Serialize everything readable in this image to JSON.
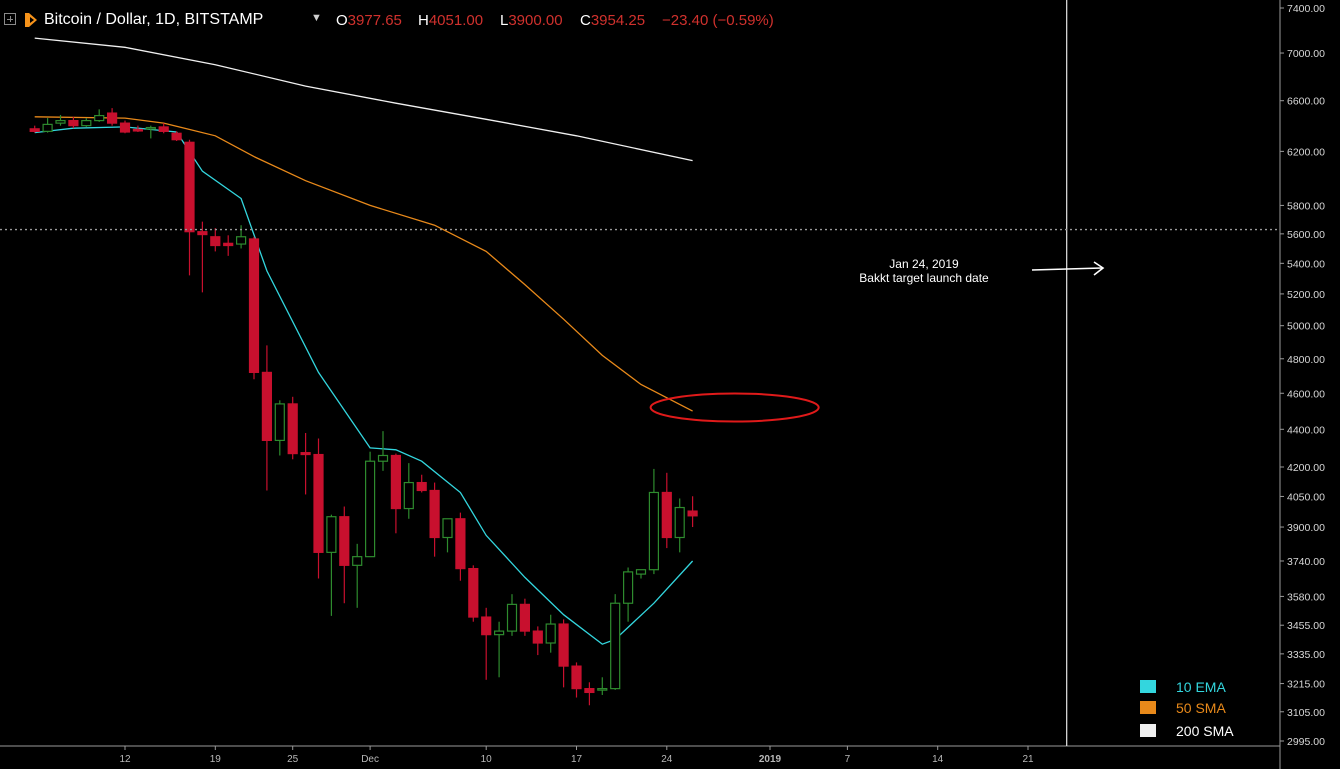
{
  "header": {
    "title": "Bitcoin / Dollar, 1D, BITSTAMP",
    "open_key": "O",
    "open": "3977.65",
    "high_key": "H",
    "high": "4051.00",
    "low_key": "L",
    "low": "3900.00",
    "close_key": "C",
    "close": "3954.25",
    "change": "−23.40 (−0.59%)"
  },
  "colors": {
    "background": "#000000",
    "up_candle": "#2e8b2e",
    "down_candle": "#c8102e",
    "ema10": "#33d6de",
    "sma50": "#e8891a",
    "sma200": "#f0f0f0",
    "ellipse": "#e01a1a",
    "grid_text": "#d8d8d8",
    "axis_text": "#b8b8b8"
  },
  "icons": {
    "expand": "plus-square-icon",
    "logo": "tradingview-logo-icon",
    "dropdown": "caret-down-icon"
  },
  "chart_data": {
    "type": "candlestick",
    "y_scale": "log",
    "ylim": [
      2940,
      7420
    ],
    "y_ticks": [
      "7400.00",
      "7000.00",
      "6600.00",
      "6200.00",
      "5800.00",
      "5600.00",
      "5400.00",
      "5200.00",
      "5000.00",
      "4800.00",
      "4600.00",
      "4400.00",
      "4200.00",
      "4050.00",
      "3900.00",
      "3740.00",
      "3580.00",
      "3455.00",
      "3335.00",
      "3215.00",
      "3105.00",
      "2995.00"
    ],
    "x_ticks": [
      {
        "label": "12",
        "date": "2018-11-12"
      },
      {
        "label": "19",
        "date": "2018-11-19"
      },
      {
        "label": "25",
        "date": "2018-11-25"
      },
      {
        "label": "Dec",
        "date": "2018-12-01"
      },
      {
        "label": "10",
        "date": "2018-12-10"
      },
      {
        "label": "17",
        "date": "2018-12-17"
      },
      {
        "label": "24",
        "date": "2018-12-24"
      },
      {
        "label": "2019",
        "date": "2019-01-01"
      },
      {
        "label": "7",
        "date": "2019-01-07"
      },
      {
        "label": "14",
        "date": "2019-01-14"
      },
      {
        "label": "21",
        "date": "2019-01-21"
      }
    ],
    "candles": [
      {
        "date": "2018-11-05",
        "o": 6375,
        "h": 6400,
        "c": 6355,
        "l": 6345
      },
      {
        "date": "2018-11-06",
        "o": 6355,
        "h": 6460,
        "c": 6410,
        "l": 6345
      },
      {
        "date": "2018-11-07",
        "o": 6420,
        "h": 6485,
        "c": 6440,
        "l": 6400
      },
      {
        "date": "2018-11-08",
        "o": 6440,
        "h": 6470,
        "c": 6400,
        "l": 6380
      },
      {
        "date": "2018-11-09",
        "o": 6400,
        "h": 6460,
        "c": 6440,
        "l": 6390
      },
      {
        "date": "2018-11-10",
        "o": 6440,
        "h": 6530,
        "c": 6480,
        "l": 6430
      },
      {
        "date": "2018-11-11",
        "o": 6500,
        "h": 6540,
        "c": 6420,
        "l": 6400
      },
      {
        "date": "2018-11-12",
        "o": 6420,
        "h": 6440,
        "c": 6350,
        "l": 6340
      },
      {
        "date": "2018-11-13",
        "o": 6370,
        "h": 6400,
        "c": 6365,
        "l": 6350
      },
      {
        "date": "2018-11-14",
        "o": 6375,
        "h": 6400,
        "c": 6385,
        "l": 6300
      },
      {
        "date": "2018-11-15",
        "o": 6390,
        "h": 6420,
        "c": 6355,
        "l": 6340
      },
      {
        "date": "2018-11-16",
        "o": 6340,
        "h": 6355,
        "c": 6290,
        "l": 6280
      },
      {
        "date": "2018-11-17",
        "o": 6270,
        "h": 6290,
        "c": 5615,
        "l": 5320
      },
      {
        "date": "2018-11-18",
        "o": 5615,
        "h": 5685,
        "c": 5595,
        "l": 5210
      },
      {
        "date": "2018-11-19",
        "o": 5580,
        "h": 5640,
        "c": 5520,
        "l": 5480
      },
      {
        "date": "2018-11-20",
        "o": 5535,
        "h": 5590,
        "c": 5520,
        "l": 5450
      },
      {
        "date": "2018-11-21",
        "o": 5530,
        "h": 5660,
        "c": 5580,
        "l": 5500
      },
      {
        "date": "2018-11-22",
        "o": 5565,
        "h": 5580,
        "c": 4720,
        "l": 4680
      },
      {
        "date": "2018-11-23",
        "o": 4720,
        "h": 4880,
        "c": 4340,
        "l": 4080
      },
      {
        "date": "2018-11-24",
        "o": 4340,
        "h": 4560,
        "c": 4540,
        "l": 4260
      },
      {
        "date": "2018-11-25",
        "o": 4540,
        "h": 4580,
        "c": 4270,
        "l": 4240
      },
      {
        "date": "2018-11-26",
        "o": 4275,
        "h": 4380,
        "c": 4265,
        "l": 4060
      },
      {
        "date": "2018-11-27",
        "o": 4265,
        "h": 4350,
        "c": 3780,
        "l": 3660
      },
      {
        "date": "2018-11-28",
        "o": 3780,
        "h": 3960,
        "c": 3950,
        "l": 3495
      },
      {
        "date": "2018-11-29",
        "o": 3950,
        "h": 4000,
        "c": 3720,
        "l": 3550
      },
      {
        "date": "2018-11-30",
        "o": 3720,
        "h": 3820,
        "c": 3760,
        "l": 3530
      },
      {
        "date": "2018-12-01",
        "o": 3760,
        "h": 4280,
        "c": 4230,
        "l": 3760
      },
      {
        "date": "2018-12-02",
        "o": 4230,
        "h": 4390,
        "c": 4260,
        "l": 4180
      },
      {
        "date": "2018-12-03",
        "o": 4260,
        "h": 4270,
        "c": 3990,
        "l": 3870
      },
      {
        "date": "2018-12-04",
        "o": 3990,
        "h": 4220,
        "c": 4120,
        "l": 3940
      },
      {
        "date": "2018-12-05",
        "o": 4120,
        "h": 4160,
        "c": 4080,
        "l": 4070
      },
      {
        "date": "2018-12-06",
        "o": 4080,
        "h": 4120,
        "c": 3850,
        "l": 3760
      },
      {
        "date": "2018-12-07",
        "o": 3850,
        "h": 3940,
        "c": 3940,
        "l": 3780
      },
      {
        "date": "2018-12-08",
        "o": 3940,
        "h": 3970,
        "c": 3705,
        "l": 3650
      },
      {
        "date": "2018-12-09",
        "o": 3705,
        "h": 3720,
        "c": 3490,
        "l": 3470
      },
      {
        "date": "2018-12-10",
        "o": 3490,
        "h": 3530,
        "c": 3415,
        "l": 3230
      },
      {
        "date": "2018-12-11",
        "o": 3415,
        "h": 3470,
        "c": 3430,
        "l": 3240
      },
      {
        "date": "2018-12-12",
        "o": 3430,
        "h": 3590,
        "c": 3545,
        "l": 3410
      },
      {
        "date": "2018-12-13",
        "o": 3545,
        "h": 3570,
        "c": 3430,
        "l": 3410
      },
      {
        "date": "2018-12-14",
        "o": 3430,
        "h": 3450,
        "c": 3380,
        "l": 3330
      },
      {
        "date": "2018-12-15",
        "o": 3380,
        "h": 3500,
        "c": 3460,
        "l": 3340
      },
      {
        "date": "2018-12-16",
        "o": 3460,
        "h": 3480,
        "c": 3285,
        "l": 3200
      },
      {
        "date": "2018-12-17",
        "o": 3285,
        "h": 3300,
        "c": 3195,
        "l": 3160
      },
      {
        "date": "2018-12-18",
        "o": 3195,
        "h": 3220,
        "c": 3180,
        "l": 3130
      },
      {
        "date": "2018-12-19",
        "o": 3190,
        "h": 3240,
        "c": 3195,
        "l": 3170
      },
      {
        "date": "2018-12-20",
        "o": 3195,
        "h": 3590,
        "c": 3550,
        "l": 3190
      },
      {
        "date": "2018-12-21",
        "o": 3550,
        "h": 3710,
        "c": 3690,
        "l": 3470
      },
      {
        "date": "2018-12-22",
        "o": 3680,
        "h": 3700,
        "c": 3700,
        "l": 3660
      },
      {
        "date": "2018-12-23",
        "o": 3700,
        "h": 4190,
        "c": 4070,
        "l": 3680
      },
      {
        "date": "2018-12-24",
        "o": 4070,
        "h": 4170,
        "c": 3850,
        "l": 3800
      },
      {
        "date": "2018-12-25",
        "o": 3850,
        "h": 4040,
        "c": 3995,
        "l": 3780
      },
      {
        "date": "2018-12-26",
        "o": 3977.65,
        "h": 4051,
        "c": 3954.25,
        "l": 3900
      }
    ],
    "series": [
      {
        "name": "10 EMA",
        "points": [
          [
            "2018-11-05",
            6345
          ],
          [
            "2018-11-08",
            6380
          ],
          [
            "2018-11-12",
            6390
          ],
          [
            "2018-11-16",
            6350
          ],
          [
            "2018-11-18",
            6050
          ],
          [
            "2018-11-21",
            5850
          ],
          [
            "2018-11-23",
            5350
          ],
          [
            "2018-11-27",
            4720
          ],
          [
            "2018-12-01",
            4300
          ],
          [
            "2018-12-03",
            4290
          ],
          [
            "2018-12-05",
            4230
          ],
          [
            "2018-12-08",
            4070
          ],
          [
            "2018-12-10",
            3860
          ],
          [
            "2018-12-13",
            3665
          ],
          [
            "2018-12-16",
            3500
          ],
          [
            "2018-12-19",
            3375
          ],
          [
            "2018-12-20",
            3395
          ],
          [
            "2018-12-23",
            3550
          ],
          [
            "2018-12-26",
            3740
          ]
        ]
      },
      {
        "name": "50 SMA",
        "points": [
          [
            "2018-11-05",
            6470
          ],
          [
            "2018-11-12",
            6460
          ],
          [
            "2018-11-15",
            6420
          ],
          [
            "2018-11-19",
            6320
          ],
          [
            "2018-11-22",
            6160
          ],
          [
            "2018-11-26",
            5980
          ],
          [
            "2018-12-01",
            5800
          ],
          [
            "2018-12-06",
            5660
          ],
          [
            "2018-12-10",
            5480
          ],
          [
            "2018-12-13",
            5260
          ],
          [
            "2018-12-16",
            5040
          ],
          [
            "2018-12-19",
            4820
          ],
          [
            "2018-12-22",
            4650
          ],
          [
            "2018-12-26",
            4500
          ]
        ]
      },
      {
        "name": "200 SMA",
        "points": [
          [
            "2018-11-05",
            7130
          ],
          [
            "2018-11-12",
            7050
          ],
          [
            "2018-11-19",
            6900
          ],
          [
            "2018-11-26",
            6720
          ],
          [
            "2018-12-03",
            6580
          ],
          [
            "2018-12-10",
            6450
          ],
          [
            "2018-12-17",
            6320
          ],
          [
            "2018-12-26",
            6130
          ]
        ]
      }
    ],
    "annotations": [
      {
        "type": "text",
        "lines": [
          "Jan 24, 2019",
          "Bakkt target launch date"
        ]
      },
      {
        "type": "arrow",
        "direction": "right"
      },
      {
        "type": "vertical-line",
        "date": "2019-01-24"
      },
      {
        "type": "horizontal-dotted-line",
        "y": 5630
      },
      {
        "type": "ellipse",
        "date_range": [
          "2018-12-26",
          "2019-01-04"
        ],
        "y_center": 4520
      }
    ],
    "legend": {
      "placement": "bottom-right",
      "entries": [
        {
          "name": "10 EMA"
        },
        {
          "name": "50 SMA"
        },
        {
          "name": "200 SMA"
        }
      ]
    }
  }
}
